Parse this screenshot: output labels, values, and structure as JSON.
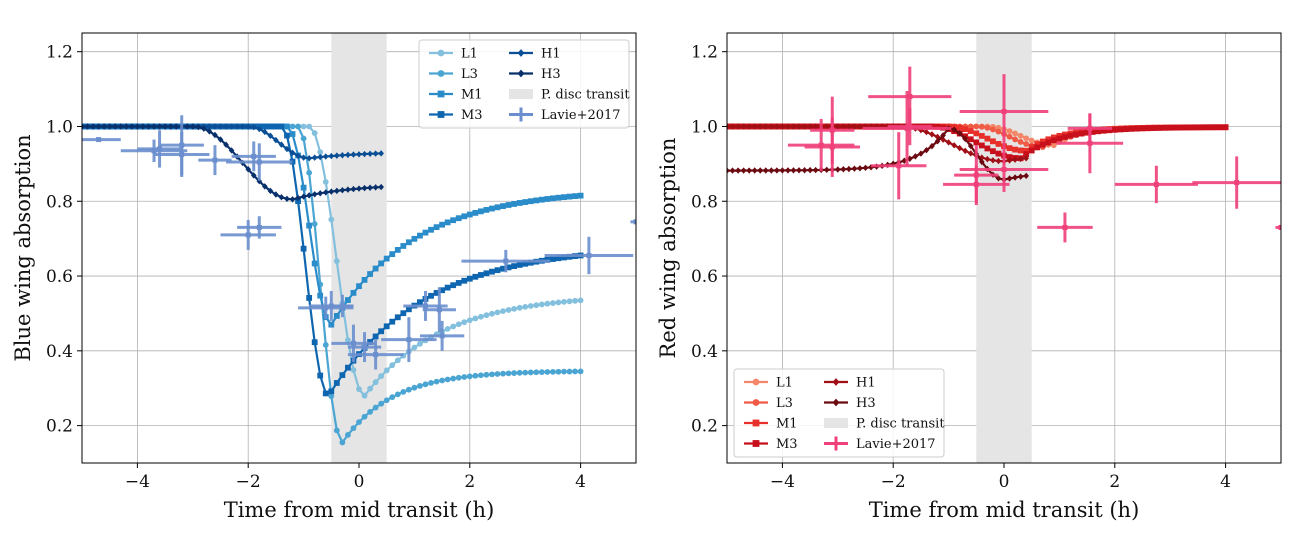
{
  "chart_data": [
    {
      "type": "line",
      "xlabel": "Time from mid transit (h)",
      "ylabel": "Blue wing absorption",
      "xlim": [
        -5,
        5
      ],
      "ylim": [
        0.1,
        1.25
      ],
      "xticks": [
        -4,
        -2,
        0,
        2,
        4
      ],
      "xtick_labels": [
        "−4",
        "−2",
        "0",
        "2",
        "4"
      ],
      "yticks": [
        0.2,
        0.4,
        0.6,
        0.8,
        1.0,
        1.2
      ],
      "ytick_labels": [
        "0.2",
        "0.4",
        "0.6",
        "0.8",
        "1.0",
        "1.2"
      ],
      "grid": true,
      "legend_position": "top-right",
      "legend_columns": 2,
      "shaded_region": {
        "label": "P. disc transit",
        "x_range": [
          -0.5,
          0.5
        ],
        "color": "#e5e5e5"
      },
      "series": [
        {
          "name": "L1",
          "color": "#83c0de",
          "marker": "circle",
          "t1": -0.9,
          "tmin": 0.1,
          "t_end": 4.0,
          "min": 0.28,
          "end": 0.535,
          "tau": 1.4,
          "pre": 1.0,
          "pre_dip": 0.0,
          "pre_tau": 0.5
        },
        {
          "name": "L3",
          "color": "#4ba5d3",
          "marker": "circle",
          "t1": -1.1,
          "tmin": -0.3,
          "t_end": 4.0,
          "min": 0.155,
          "end": 0.345,
          "tau": 0.9,
          "pre": 1.0,
          "pre_dip": 0.0,
          "pre_tau": 0.5
        },
        {
          "name": "M1",
          "color": "#2b8cca",
          "marker": "square",
          "t1": -1.3,
          "tmin": -0.5,
          "t_end": 4.0,
          "min": 0.47,
          "end": 0.815,
          "tau": 1.5,
          "pre": 1.0,
          "pre_dip": 0.0,
          "pre_tau": 0.5
        },
        {
          "name": "M3",
          "color": "#0f66b0",
          "marker": "square",
          "t1": -1.4,
          "tmin": -0.55,
          "t_end": 4.0,
          "min": 0.28,
          "end": 0.655,
          "tau": 1.7,
          "pre": 1.0,
          "pre_dip": 0.0,
          "pre_tau": 0.5
        },
        {
          "name": "H1",
          "color": "#0a4f95",
          "marker": "diamond",
          "t1": -2.0,
          "tmin": -0.9,
          "t_end": 0.4,
          "min": 0.915,
          "end": 0.928,
          "tau": 1.0,
          "pre": 1.0,
          "pre_dip": 0.0,
          "pre_tau": 0.5
        },
        {
          "name": "H3",
          "color": "#08306b",
          "marker": "diamond",
          "t1": -3.0,
          "tmin": -1.2,
          "t_end": 0.4,
          "min": 0.805,
          "end": 0.838,
          "tau": 1.0,
          "pre": 1.0,
          "pre_dip": 0.0,
          "pre_tau": 0.5
        }
      ],
      "observations": {
        "name": "Lavie+2017",
        "color": "#6b8fce",
        "points": [
          {
            "x": -4.7,
            "y": 0.965,
            "xerr": 0.4,
            "yerr": 0.0
          },
          {
            "x": -3.7,
            "y": 0.935,
            "xerr": 0.6,
            "yerr": 0.03
          },
          {
            "x": -3.6,
            "y": 0.94,
            "xerr": 0.4,
            "yerr": 0.05
          },
          {
            "x": -3.2,
            "y": 0.95,
            "xerr": 0.4,
            "yerr": 0.08
          },
          {
            "x": -3.2,
            "y": 0.925,
            "xerr": 0.5,
            "yerr": 0.06
          },
          {
            "x": -2.6,
            "y": 0.91,
            "xerr": 0.3,
            "yerr": 0.04
          },
          {
            "x": -1.8,
            "y": 0.905,
            "xerr": 0.6,
            "yerr": 0.05
          },
          {
            "x": -1.9,
            "y": 0.92,
            "xerr": 0.4,
            "yerr": 0.04
          },
          {
            "x": -2.0,
            "y": 0.71,
            "xerr": 0.5,
            "yerr": 0.04
          },
          {
            "x": -1.8,
            "y": 0.73,
            "xerr": 0.4,
            "yerr": 0.03
          },
          {
            "x": -0.6,
            "y": 0.515,
            "xerr": 0.5,
            "yerr": 0.03
          },
          {
            "x": -0.5,
            "y": 0.52,
            "xerr": 0.4,
            "yerr": 0.04
          },
          {
            "x": -0.3,
            "y": 0.52,
            "xerr": 0.2,
            "yerr": 0.03
          },
          {
            "x": -0.1,
            "y": 0.42,
            "xerr": 0.4,
            "yerr": 0.05
          },
          {
            "x": 0.1,
            "y": 0.41,
            "xerr": 0.3,
            "yerr": 0.04
          },
          {
            "x": 0.3,
            "y": 0.39,
            "xerr": 0.5,
            "yerr": 0.04
          },
          {
            "x": 0.9,
            "y": 0.43,
            "xerr": 0.5,
            "yerr": 0.06
          },
          {
            "x": 1.2,
            "y": 0.52,
            "xerr": 0.4,
            "yerr": 0.04
          },
          {
            "x": 1.45,
            "y": 0.51,
            "xerr": 0.3,
            "yerr": 0.06
          },
          {
            "x": 1.5,
            "y": 0.44,
            "xerr": 0.4,
            "yerr": 0.04
          },
          {
            "x": 2.65,
            "y": 0.64,
            "xerr": 0.8,
            "yerr": 0.03
          },
          {
            "x": 4.15,
            "y": 0.655,
            "xerr": 0.8,
            "yerr": 0.05
          },
          {
            "x": 5.0,
            "y": 0.745,
            "xerr": 0.1,
            "yerr": 0.0
          }
        ]
      }
    },
    {
      "type": "line",
      "xlabel": "Time from mid transit (h)",
      "ylabel": "Red wing absorption",
      "xlim": [
        -5,
        5
      ],
      "ylim": [
        0.1,
        1.25
      ],
      "xticks": [
        -4,
        -2,
        0,
        2,
        4
      ],
      "xtick_labels": [
        "−4",
        "−2",
        "0",
        "2",
        "4"
      ],
      "yticks": [
        0.2,
        0.4,
        0.6,
        0.8,
        1.0,
        1.2
      ],
      "ytick_labels": [
        "0.2",
        "0.4",
        "0.6",
        "0.8",
        "1.0",
        "1.2"
      ],
      "grid": true,
      "legend_position": "bottom-left",
      "legend_columns": 2,
      "shaded_region": {
        "label": "P. disc transit",
        "x_range": [
          -0.5,
          0.5
        ],
        "color": "#e5e5e5"
      },
      "series": [
        {
          "name": "L1",
          "color": "#f4876a",
          "marker": "circle",
          "t1": -0.3,
          "tmin": 0.9,
          "t_end": 4.0,
          "min": 0.95,
          "end": 0.998,
          "tau": 0.5,
          "pre": 1.0,
          "pre_dip": 0.0,
          "pre_tau": 0.5
        },
        {
          "name": "L3",
          "color": "#ef5b45",
          "marker": "circle",
          "t1": -0.5,
          "tmin": 0.7,
          "t_end": 4.0,
          "min": 0.945,
          "end": 0.998,
          "tau": 0.5,
          "pre": 1.0,
          "pre_dip": 0.0,
          "pre_tau": 0.5
        },
        {
          "name": "M1",
          "color": "#e8302a",
          "marker": "square",
          "t1": -1.0,
          "tmin": 0.4,
          "t_end": 4.0,
          "min": 0.935,
          "end": 0.998,
          "tau": 0.6,
          "pre": 1.0,
          "pre_dip": 0.0,
          "pre_tau": 0.5
        },
        {
          "name": "M3",
          "color": "#c8101c",
          "marker": "square",
          "t1": -1.3,
          "tmin": 0.3,
          "t_end": 4.0,
          "min": 0.915,
          "end": 0.998,
          "tau": 0.7,
          "pre": 1.0,
          "pre_dip": 0.0,
          "pre_tau": 0.5
        },
        {
          "name": "H1",
          "color": "#a00f15",
          "marker": "diamond",
          "t1": -1.9,
          "tmin": 0.0,
          "t_end": 0.4,
          "min": 0.907,
          "end": 0.915,
          "tau": 1.0,
          "pre": 1.0,
          "pre_dip": 0.0,
          "pre_tau": 0.5
        },
        {
          "name": "H3",
          "color": "#6b0a10",
          "marker": "diamond",
          "t1": -1.0,
          "tmin": 0.0,
          "t_end": 0.4,
          "min": 0.858,
          "end": 0.868,
          "tau": 1.0,
          "pre": 0.995,
          "pre_dip": 0.113,
          "pre_tau": 0.55
        }
      ],
      "observations": {
        "name": "Lavie+2017",
        "color": "#f0407a",
        "points": [
          {
            "x": -3.3,
            "y": 0.95,
            "xerr": 0.6,
            "yerr": 0.07
          },
          {
            "x": -3.1,
            "y": 0.945,
            "xerr": 0.5,
            "yerr": 0.08
          },
          {
            "x": -3.1,
            "y": 0.99,
            "xerr": 0.4,
            "yerr": 0.09
          },
          {
            "x": -1.7,
            "y": 1.08,
            "xerr": 0.75,
            "yerr": 0.08
          },
          {
            "x": -1.7,
            "y": 1.0,
            "xerr": 0.4,
            "yerr": 0.05
          },
          {
            "x": -1.75,
            "y": 0.995,
            "xerr": 0.8,
            "yerr": 0.1
          },
          {
            "x": -1.9,
            "y": 0.895,
            "xerr": 0.5,
            "yerr": 0.09
          },
          {
            "x": -0.5,
            "y": 0.845,
            "xerr": 0.6,
            "yerr": 0.05
          },
          {
            "x": -0.5,
            "y": 0.87,
            "xerr": 0.4,
            "yerr": 0.08
          },
          {
            "x": 0.0,
            "y": 1.04,
            "xerr": 0.8,
            "yerr": 0.1
          },
          {
            "x": 0.0,
            "y": 0.885,
            "xerr": 0.8,
            "yerr": 0.06
          },
          {
            "x": 1.1,
            "y": 0.73,
            "xerr": 0.5,
            "yerr": 0.04
          },
          {
            "x": 1.55,
            "y": 0.955,
            "xerr": 0.6,
            "yerr": 0.08
          },
          {
            "x": 1.55,
            "y": 0.995,
            "xerr": 0.4,
            "yerr": 0.04
          },
          {
            "x": 2.75,
            "y": 0.845,
            "xerr": 0.75,
            "yerr": 0.05
          },
          {
            "x": 4.2,
            "y": 0.85,
            "xerr": 0.8,
            "yerr": 0.07
          },
          {
            "x": 5.0,
            "y": 0.73,
            "xerr": 0.1,
            "yerr": 0.0
          }
        ]
      }
    }
  ]
}
